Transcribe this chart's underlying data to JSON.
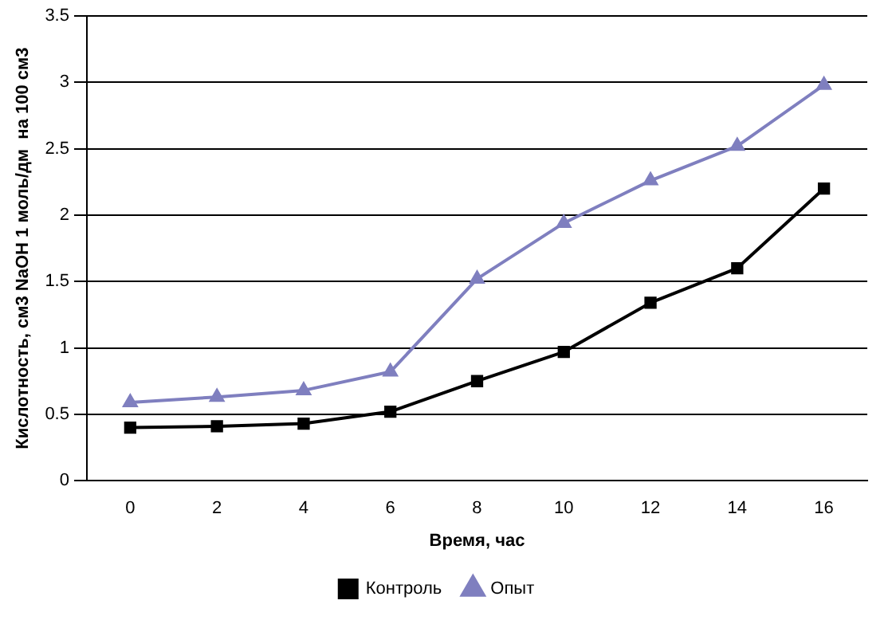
{
  "chart_data": {
    "type": "line",
    "xlabel": "Время, час",
    "ylabel": "Кислотность, см3 NaOH 1 моль/дм  на 100 см3",
    "categories": [
      "0",
      "2",
      "4",
      "6",
      "8",
      "10",
      "12",
      "14",
      "16"
    ],
    "series": [
      {
        "name": "Контроль",
        "color": "#000000",
        "marker": "square",
        "values": [
          0.4,
          0.41,
          0.43,
          0.52,
          0.75,
          0.97,
          1.34,
          1.6,
          2.2
        ]
      },
      {
        "name": "Опыт",
        "color": "#7f7fbf",
        "marker": "triangle",
        "values": [
          0.59,
          0.63,
          0.68,
          0.82,
          1.52,
          1.94,
          2.26,
          2.52,
          2.98
        ]
      }
    ],
    "ylim": [
      0,
      3.5
    ],
    "yticks": [
      0,
      0.5,
      1,
      1.5,
      2,
      2.5,
      3,
      3.5
    ],
    "grid": "y",
    "legend": "bottom"
  }
}
